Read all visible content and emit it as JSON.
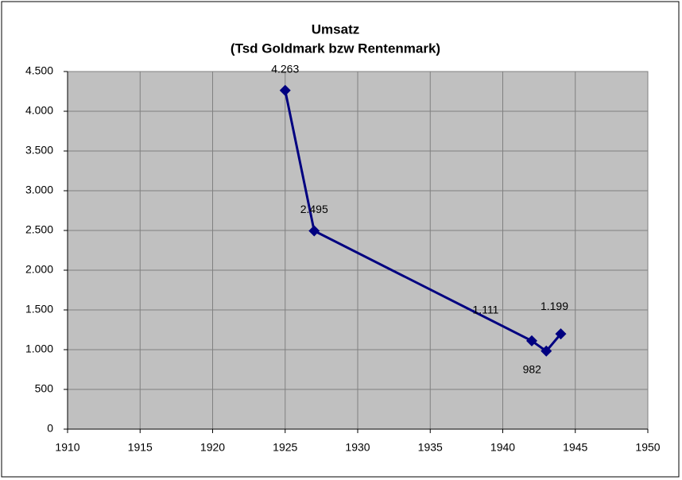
{
  "chart_data": {
    "type": "line",
    "title": "Umsatz",
    "subtitle": "(Tsd Goldmark bzw Rentenmark)",
    "x": [
      1925,
      1927,
      1942,
      1943,
      1944
    ],
    "series": [
      {
        "color": "#000080",
        "values": [
          4263,
          2495,
          1111,
          982,
          1199
        ],
        "value_labels": [
          "4.263",
          "2.495",
          "1.111",
          "982",
          "1.199"
        ]
      }
    ],
    "xlim": [
      1910,
      1950
    ],
    "xticks": [
      1910,
      1915,
      1920,
      1925,
      1930,
      1935,
      1940,
      1945,
      1950
    ],
    "ylim": [
      0,
      4500
    ],
    "yticks": [
      0,
      500,
      {
        "value": 1000,
        "label": "1.000"
      },
      {
        "value": 1500,
        "label": "1.500"
      },
      {
        "value": 2000,
        "label": "2.000"
      },
      {
        "value": 2500,
        "label": "2.500"
      },
      {
        "value": 3000,
        "label": "3.000"
      },
      {
        "value": 3500,
        "label": "3.500"
      },
      {
        "value": 4000,
        "label": "4.000"
      },
      {
        "value": 4500,
        "label": "4.500"
      }
    ],
    "grid": true,
    "plot_background": "#c0c0c0"
  }
}
